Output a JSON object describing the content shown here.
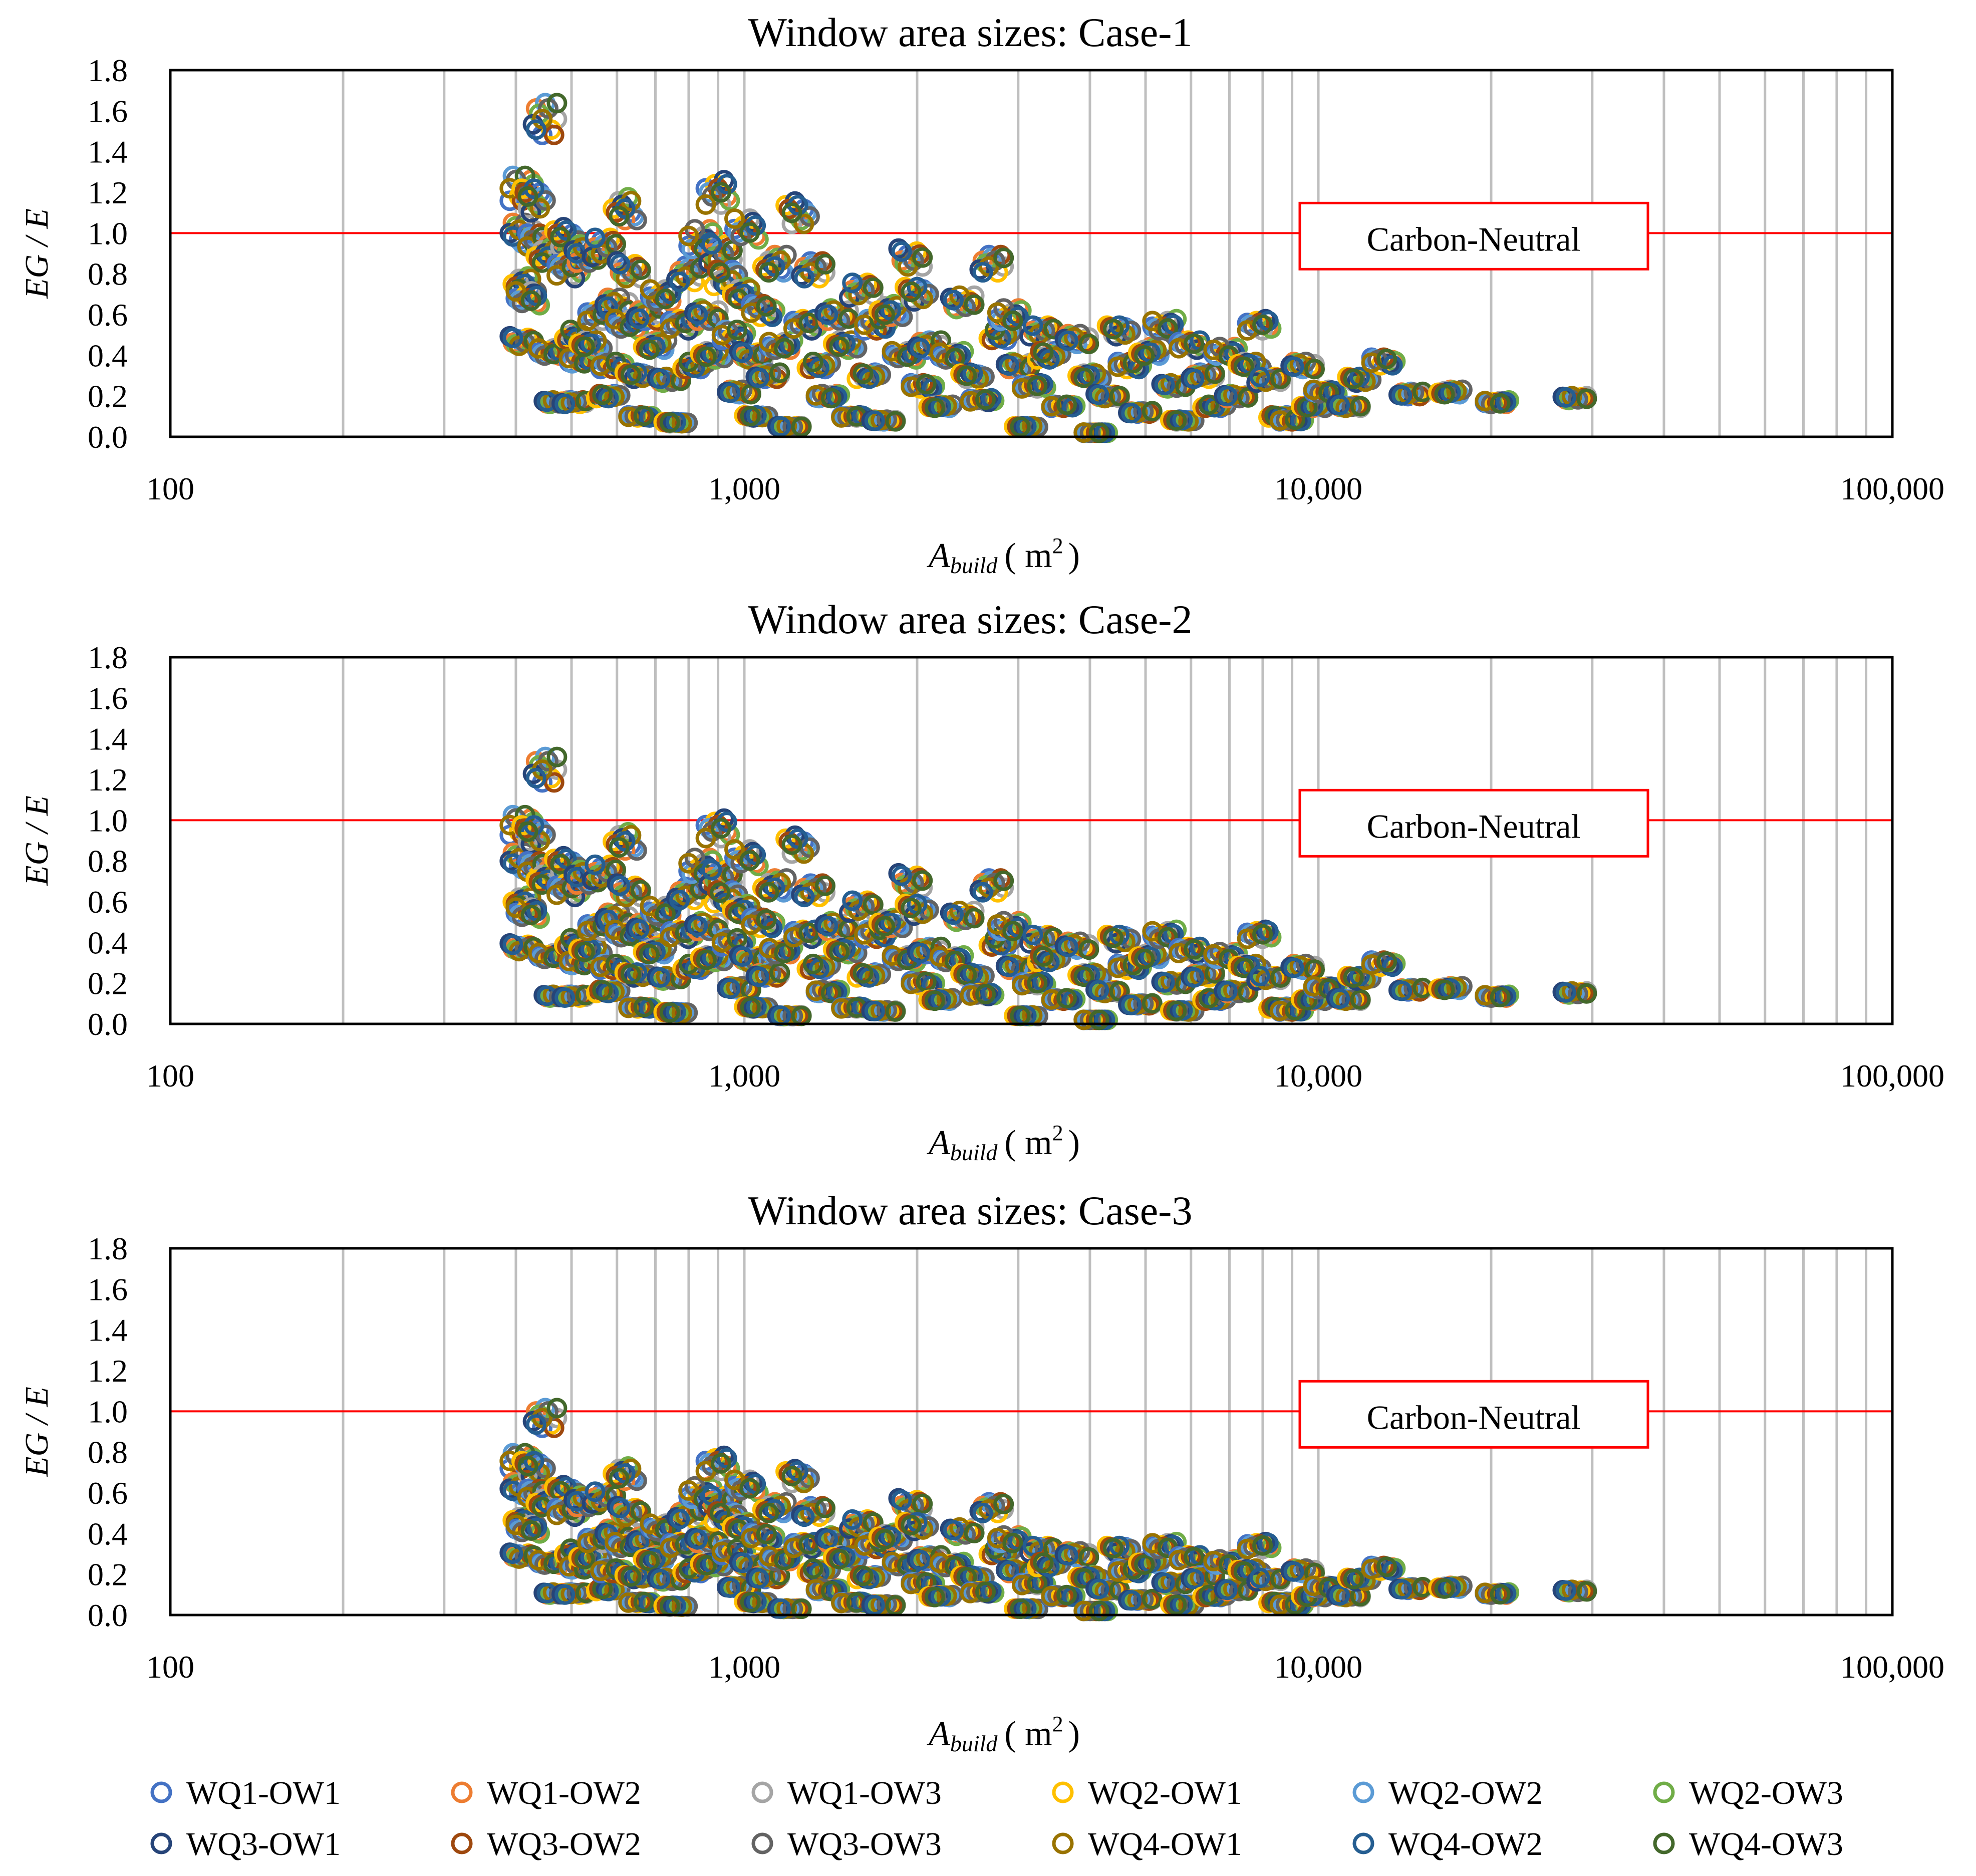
{
  "chart_data": [
    {
      "type": "scatter",
      "title": "Window area sizes: Case-1",
      "xlabel": "A_build ( m² )",
      "xlabel_base": "A",
      "xlabel_sub": "build",
      "xlabel_unit": "( m",
      "xlabel_sup": "2",
      "xlabel_close": ")",
      "ylabel": "EG / E",
      "xscale": "log",
      "xlim": [
        100,
        100000
      ],
      "ylim": [
        0.0,
        1.8
      ],
      "xticks": [
        "100",
        "1,000",
        "10,000",
        "100,000"
      ],
      "yticks": [
        "0.0",
        "0.2",
        "0.4",
        "0.6",
        "0.8",
        "1.0",
        "1.2",
        "1.4",
        "1.6",
        "1.8"
      ],
      "grid": "vertical minor gridlines",
      "reference_line": {
        "y": 1.0,
        "color": "#ff0000",
        "label": "Carbon-Neutral"
      },
      "scale": 1.0
    },
    {
      "type": "scatter",
      "title": "Window area sizes: Case-2",
      "xlabel": "A_build ( m² )",
      "xlabel_base": "A",
      "xlabel_sub": "build",
      "xlabel_unit": "( m",
      "xlabel_sup": "2",
      "xlabel_close": ")",
      "ylabel": "EG / E",
      "xscale": "log",
      "xlim": [
        100,
        100000
      ],
      "ylim": [
        0.0,
        1.8
      ],
      "xticks": [
        "100",
        "1,000",
        "10,000",
        "100,000"
      ],
      "yticks": [
        "0.0",
        "0.2",
        "0.4",
        "0.6",
        "0.8",
        "1.0",
        "1.2",
        "1.4",
        "1.6",
        "1.8"
      ],
      "grid": "vertical minor gridlines",
      "reference_line": {
        "y": 1.0,
        "color": "#ff0000",
        "label": "Carbon-Neutral"
      },
      "scale": 0.8
    },
    {
      "type": "scatter",
      "title": "Window area sizes: Case-3",
      "xlabel": "A_build ( m² )",
      "xlabel_base": "A",
      "xlabel_sub": "build",
      "xlabel_unit": "( m",
      "xlabel_sup": "2",
      "xlabel_close": ")",
      "ylabel": "EG / E",
      "xscale": "log",
      "xlim": [
        100,
        100000
      ],
      "ylim": [
        0.0,
        1.8
      ],
      "xticks": [
        "100",
        "1,000",
        "10,000",
        "100,000"
      ],
      "yticks": [
        "0.0",
        "0.2",
        "0.4",
        "0.6",
        "0.8",
        "1.0",
        "1.2",
        "1.4",
        "1.6",
        "1.8"
      ],
      "grid": "vertical minor gridlines",
      "reference_line": {
        "y": 1.0,
        "color": "#ff0000",
        "label": "Carbon-Neutral"
      },
      "scale": 0.62
    }
  ],
  "base_points": [
    [
      410,
      1.22
    ],
    [
      410,
      1.0
    ],
    [
      415,
      0.75
    ],
    [
      420,
      0.68
    ],
    [
      410,
      0.47
    ],
    [
      430,
      1.16
    ],
    [
      440,
      0.95
    ],
    [
      450,
      1.56
    ],
    [
      455,
      0.9
    ],
    [
      460,
      0.42
    ],
    [
      470,
      0.17
    ],
    [
      490,
      0.98
    ],
    [
      495,
      0.82
    ],
    [
      505,
      0.17
    ],
    [
      510,
      0.5
    ],
    [
      520,
      0.38
    ],
    [
      530,
      0.9
    ],
    [
      540,
      0.45
    ],
    [
      560,
      0.6
    ],
    [
      570,
      0.93
    ],
    [
      580,
      0.2
    ],
    [
      590,
      0.35
    ],
    [
      600,
      0.65
    ],
    [
      620,
      1.12
    ],
    [
      625,
      0.55
    ],
    [
      630,
      0.82
    ],
    [
      650,
      0.3
    ],
    [
      660,
      0.1
    ],
    [
      680,
      0.6
    ],
    [
      700,
      0.45
    ],
    [
      720,
      0.7
    ],
    [
      740,
      0.28
    ],
    [
      760,
      0.07
    ],
    [
      780,
      0.55
    ],
    [
      800,
      0.8
    ],
    [
      820,
      0.35
    ],
    [
      840,
      0.97
    ],
    [
      860,
      0.6
    ],
    [
      880,
      0.4
    ],
    [
      900,
      1.2
    ],
    [
      910,
      0.9
    ],
    [
      930,
      0.78
    ],
    [
      960,
      0.5
    ],
    [
      980,
      0.22
    ],
    [
      1000,
      0.7
    ],
    [
      1010,
      1.02
    ],
    [
      1030,
      0.4
    ],
    [
      1050,
      0.1
    ],
    [
      1080,
      0.62
    ],
    [
      1100,
      0.3
    ],
    [
      1130,
      0.85
    ],
    [
      1160,
      0.45
    ],
    [
      1200,
      0.05
    ],
    [
      1240,
      1.1
    ],
    [
      1280,
      0.55
    ],
    [
      1320,
      0.82
    ],
    [
      1350,
      0.35
    ],
    [
      1400,
      0.2
    ],
    [
      1450,
      0.6
    ],
    [
      1500,
      0.45
    ],
    [
      1550,
      0.1
    ],
    [
      1600,
      0.72
    ],
    [
      1650,
      0.3
    ],
    [
      1700,
      0.55
    ],
    [
      1750,
      0.08
    ],
    [
      1800,
      0.62
    ],
    [
      1900,
      0.4
    ],
    [
      1950,
      0.88
    ],
    [
      2000,
      0.7
    ],
    [
      2050,
      0.25
    ],
    [
      2100,
      0.45
    ],
    [
      2200,
      0.15
    ],
    [
      2300,
      0.4
    ],
    [
      2400,
      0.66
    ],
    [
      2500,
      0.3
    ],
    [
      2600,
      0.18
    ],
    [
      2700,
      0.85
    ],
    [
      2800,
      0.5
    ],
    [
      2900,
      0.6
    ],
    [
      3000,
      0.35
    ],
    [
      3100,
      0.05
    ],
    [
      3200,
      0.25
    ],
    [
      3300,
      0.52
    ],
    [
      3400,
      0.4
    ],
    [
      3600,
      0.15
    ],
    [
      3800,
      0.48
    ],
    [
      4000,
      0.3
    ],
    [
      4100,
      0.02
    ],
    [
      4300,
      0.2
    ],
    [
      4500,
      0.52
    ],
    [
      4700,
      0.35
    ],
    [
      4900,
      0.12
    ],
    [
      5100,
      0.42
    ],
    [
      5400,
      0.55
    ],
    [
      5600,
      0.25
    ],
    [
      5800,
      0.08
    ],
    [
      6000,
      0.45
    ],
    [
      6300,
      0.3
    ],
    [
      6600,
      0.15
    ],
    [
      6900,
      0.42
    ],
    [
      7200,
      0.2
    ],
    [
      7600,
      0.35
    ],
    [
      7900,
      0.55
    ],
    [
      8200,
      0.28
    ],
    [
      8600,
      0.1
    ],
    [
      9000,
      0.08
    ],
    [
      9400,
      0.35
    ],
    [
      9800,
      0.15
    ],
    [
      10300,
      0.22
    ],
    [
      11300,
      0.15
    ],
    [
      11800,
      0.28
    ],
    [
      13000,
      0.37
    ],
    [
      14500,
      0.21
    ],
    [
      17000,
      0.22
    ],
    [
      20500,
      0.17
    ],
    [
      28000,
      0.19
    ]
  ],
  "series_colors": [
    "#4472c4",
    "#ed7d31",
    "#a5a5a5",
    "#ffc000",
    "#5b9bd5",
    "#70ad47",
    "#264478",
    "#9e480e",
    "#636363",
    "#997300",
    "#255e91",
    "#43682b"
  ],
  "legend": [
    {
      "label": "WQ1-OW1",
      "color": "#4472c4"
    },
    {
      "label": "WQ1-OW2",
      "color": "#ed7d31"
    },
    {
      "label": "WQ1-OW3",
      "color": "#a5a5a5"
    },
    {
      "label": "WQ2-OW1",
      "color": "#ffc000"
    },
    {
      "label": "WQ2-OW2",
      "color": "#5b9bd5"
    },
    {
      "label": "WQ2-OW3",
      "color": "#70ad47"
    },
    {
      "label": "WQ3-OW1",
      "color": "#264478"
    },
    {
      "label": "WQ3-OW2",
      "color": "#9e480e"
    },
    {
      "label": "WQ3-OW3",
      "color": "#636363"
    },
    {
      "label": "WQ4-OW1",
      "color": "#997300"
    },
    {
      "label": "WQ4-OW2",
      "color": "#255e91"
    },
    {
      "label": "WQ4-OW3",
      "color": "#43682b"
    }
  ]
}
